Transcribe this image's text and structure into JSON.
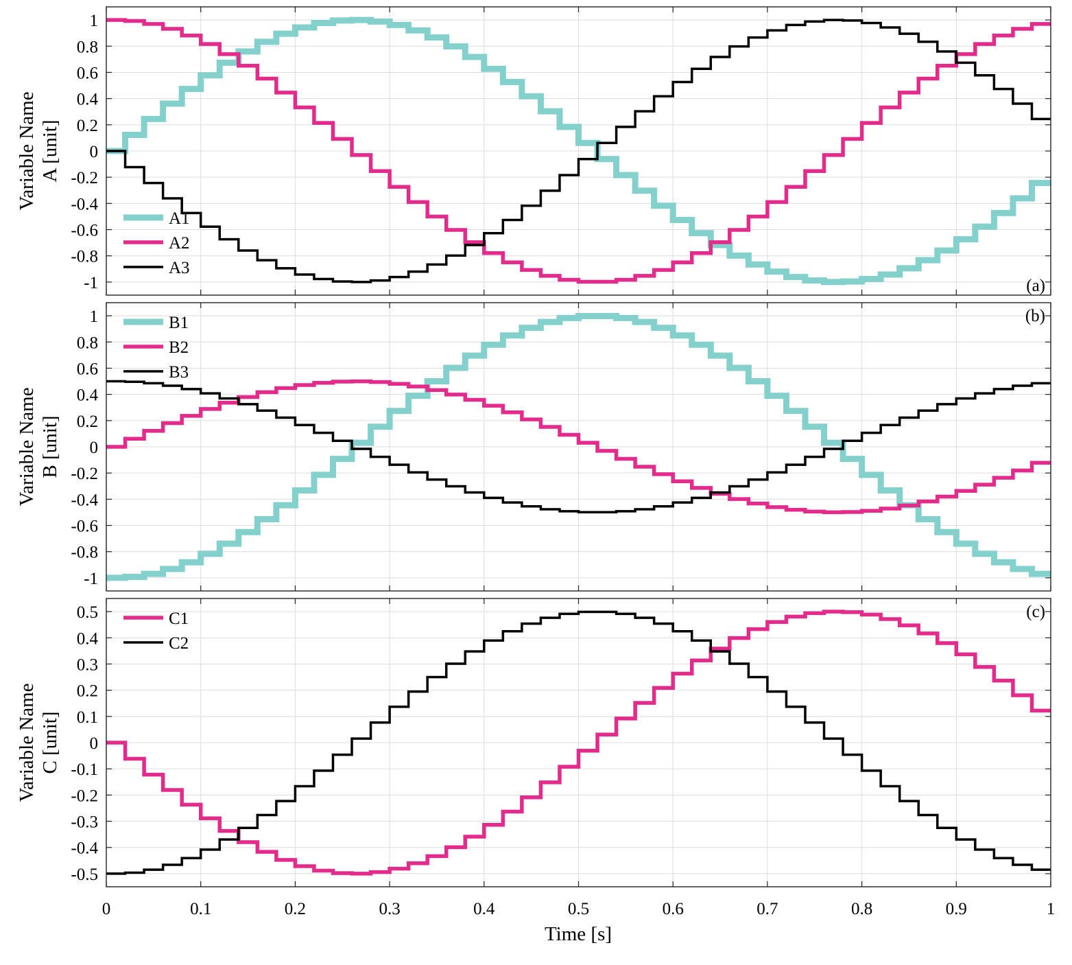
{
  "figure": {
    "xlabel": "Time [s]",
    "x_ticks": [
      "0",
      "0.1",
      "0.2",
      "0.3",
      "0.4",
      "0.5",
      "0.6",
      "0.7",
      "0.8",
      "0.9",
      "1"
    ]
  },
  "chart_data": [
    {
      "type": "line",
      "step": true,
      "panel_label": "(a)",
      "ylabel": [
        "Variable Name",
        "A [unit]"
      ],
      "xlim": [
        0,
        1
      ],
      "ylim": [
        -1.1,
        1.1
      ],
      "y_ticks": [
        "-1",
        "-0.8",
        "-0.6",
        "-0.4",
        "-0.2",
        "0",
        "0.2",
        "0.4",
        "0.6",
        "0.8",
        "1"
      ],
      "grid": true,
      "legend_position": "bottom-left",
      "series": [
        {
          "name": "A1",
          "color": "#84d0cc",
          "stroke_style": "thick",
          "function": "sin(2*pi*t/1.02)",
          "amplitude": 1,
          "phase": 0
        },
        {
          "name": "A2",
          "color": "#e22b8b",
          "stroke_style": "medium",
          "function": "cos(2*pi*t/1.02)",
          "amplitude": 1,
          "phase": 0.25
        },
        {
          "name": "A3",
          "color": "#000000",
          "stroke_style": "thin",
          "function": "-sin(2*pi*t/1.02)",
          "amplitude": -1,
          "phase": 0
        }
      ]
    },
    {
      "type": "line",
      "step": true,
      "panel_label": "(b)",
      "ylabel": [
        "Variable Name",
        "B [unit]"
      ],
      "xlim": [
        0,
        1
      ],
      "ylim": [
        -1.1,
        1.1
      ],
      "y_ticks": [
        "-1",
        "-0.8",
        "-0.6",
        "-0.4",
        "-0.2",
        "0",
        "0.2",
        "0.4",
        "0.6",
        "0.8",
        "1"
      ],
      "grid": true,
      "legend_position": "top-left",
      "series": [
        {
          "name": "B1",
          "color": "#84d0cc",
          "stroke_style": "thick",
          "function": "-cos(2*pi*t/1.02)",
          "amplitude": -1,
          "phase": 0.25
        },
        {
          "name": "B2",
          "color": "#e22b8b",
          "stroke_style": "medium",
          "function": "0.5*sin(2*pi*t/1.02)",
          "amplitude": 0.5,
          "phase": 0
        },
        {
          "name": "B3",
          "color": "#000000",
          "stroke_style": "thin",
          "function": "0.5*cos(2*pi*t/1.02)",
          "amplitude": 0.5,
          "phase": 0.25
        }
      ]
    },
    {
      "type": "line",
      "step": true,
      "panel_label": "(c)",
      "ylabel": [
        "Variable Name",
        "C [unit]"
      ],
      "xlim": [
        0,
        1
      ],
      "ylim": [
        -0.55,
        0.55
      ],
      "y_ticks": [
        "-0.5",
        "-0.4",
        "-0.3",
        "-0.2",
        "-0.1",
        "0",
        "0.1",
        "0.2",
        "0.3",
        "0.4",
        "0.5"
      ],
      "grid": true,
      "legend_position": "top-left",
      "series": [
        {
          "name": "C1",
          "color": "#e22b8b",
          "stroke_style": "medium",
          "function": "-0.5*sin(2*pi*t/1.02)",
          "amplitude": -0.5,
          "phase": 0
        },
        {
          "name": "C2",
          "color": "#000000",
          "stroke_style": "thin",
          "function": "-0.5*cos(2*pi*t/1.02)",
          "amplitude": -0.5,
          "phase": 0.25
        }
      ]
    }
  ]
}
